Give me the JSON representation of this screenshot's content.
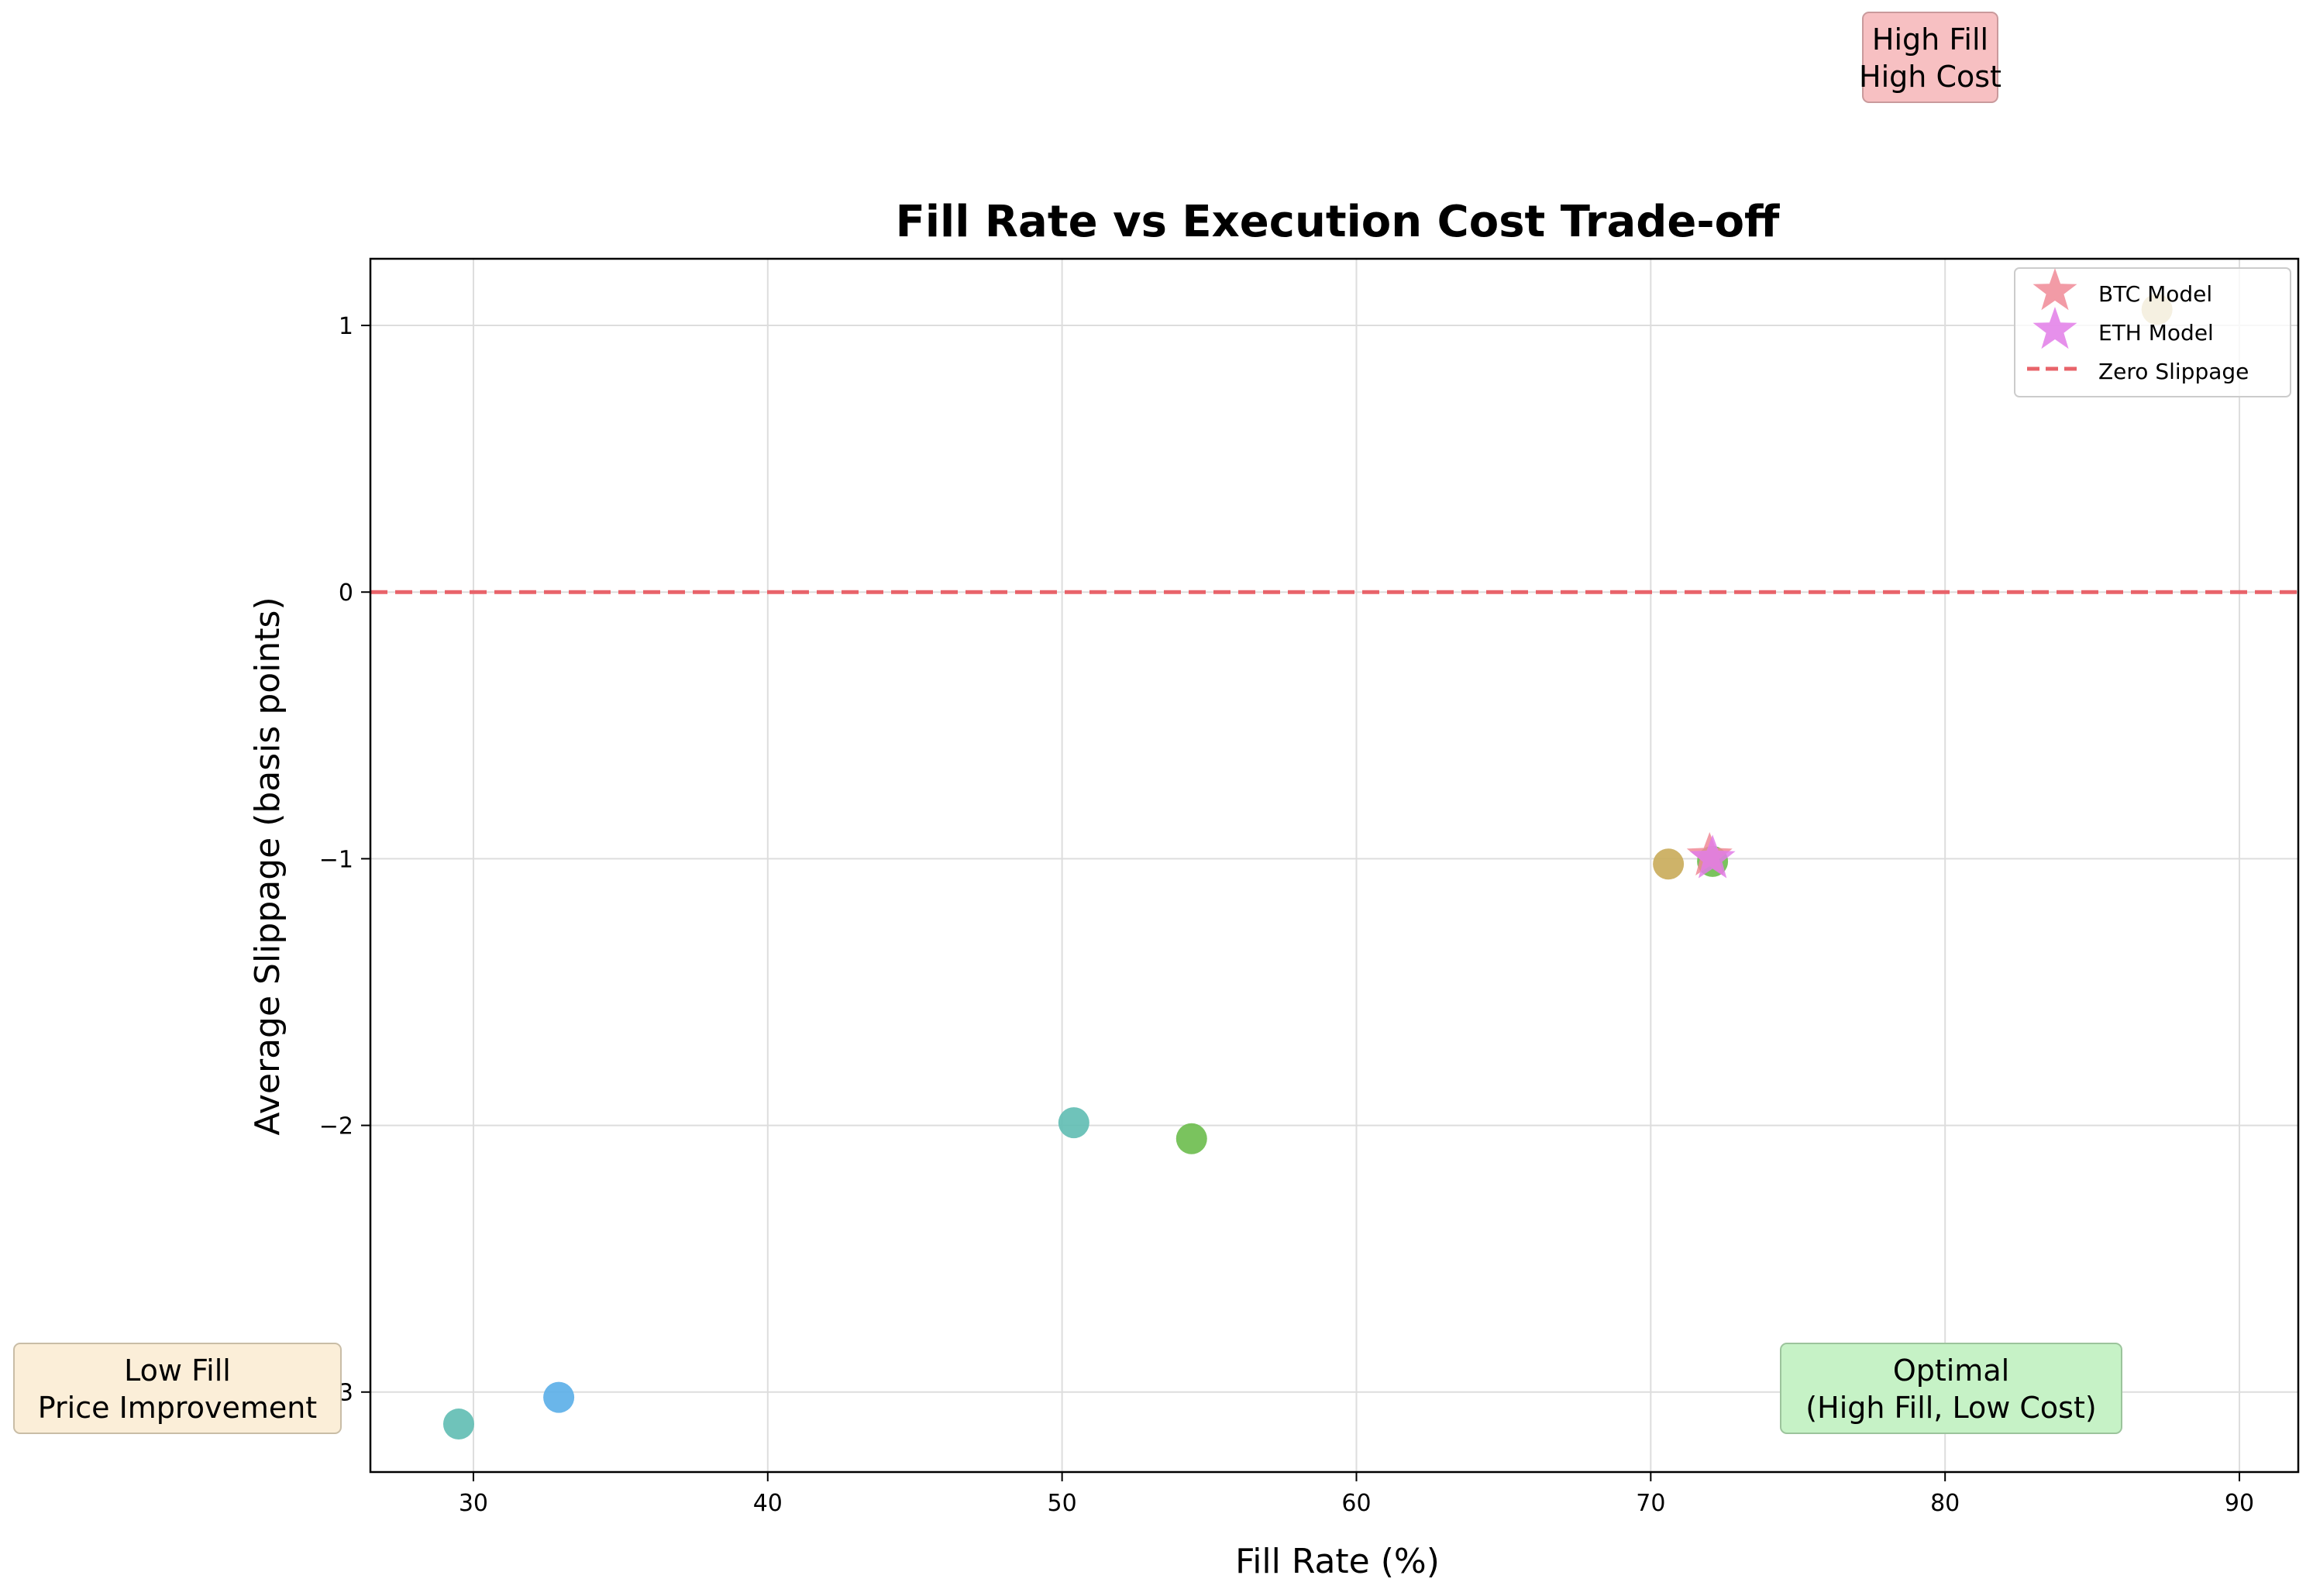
{
  "chart_data": {
    "type": "scatter",
    "title": "Fill Rate vs Execution Cost Trade-off",
    "xlabel": "Fill Rate (%)",
    "ylabel": "Average Slippage (basis points)",
    "xlim": [
      26.5,
      92
    ],
    "ylim": [
      -3.3,
      1.25
    ],
    "xticks": [
      30,
      40,
      50,
      60,
      70,
      80,
      90
    ],
    "yticks": [
      -3,
      -2,
      -1,
      0,
      1
    ],
    "grid": true,
    "legend_position": "top-right",
    "points": [
      {
        "x": 29.5,
        "y": -3.12,
        "color": "#5fbcb2"
      },
      {
        "x": 32.9,
        "y": -3.02,
        "color": "#5aaee8"
      },
      {
        "x": 50.4,
        "y": -1.99,
        "color": "#5fbcb2"
      },
      {
        "x": 54.4,
        "y": -2.05,
        "color": "#6bbd4d"
      },
      {
        "x": 70.6,
        "y": -1.02,
        "color": "#c9ab59"
      },
      {
        "x": 72.1,
        "y": -1.01,
        "color": "#6bbd4d"
      },
      {
        "x": 87.2,
        "y": 1.06,
        "color": "#c9ab59"
      }
    ],
    "series": [
      {
        "name": "BTC Model",
        "x": 72.0,
        "y": -0.99,
        "marker": "star",
        "color": "#f08a97"
      },
      {
        "name": "ETH Model",
        "x": 72.1,
        "y": -1.0,
        "marker": "star",
        "color": "#e27ce8"
      }
    ],
    "reference_line": {
      "name": "Zero Slippage",
      "y": 0,
      "color": "#e8636a",
      "style": "dashed"
    },
    "annotations": [
      {
        "lines": [
          "High Fill",
          "High Cost"
        ],
        "fill": "#f7c0c2",
        "stroke": "#c99a9c"
      },
      {
        "lines": [
          "Low Fill",
          "Price Improvement"
        ],
        "fill": "#fbeed8",
        "stroke": "#c9bda6"
      },
      {
        "lines": [
          "Optimal",
          "(High Fill, Low Cost)"
        ],
        "fill": "#c6f2c6",
        "stroke": "#9cc49c"
      }
    ]
  }
}
